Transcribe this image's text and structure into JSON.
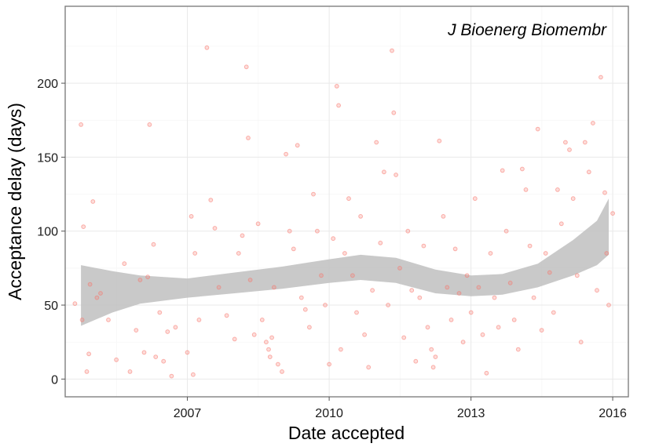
{
  "chart_data": {
    "type": "scatter",
    "annotation": "J Bioenerg Biomembr",
    "xlabel": "Date accepted",
    "ylabel": "Acceptance delay (days)",
    "xlim": [
      "2004-06-01",
      "2016-05-01"
    ],
    "ylim": [
      -12,
      252
    ],
    "x_ticks": [
      "2007-01-01",
      "2010-01-01",
      "2013-01-01",
      "2016-01-01"
    ],
    "x_tick_labels": [
      "2007",
      "2010",
      "2013",
      "2016"
    ],
    "y_ticks": [
      0,
      50,
      100,
      150,
      200
    ],
    "y_tick_labels": [
      "0",
      "50",
      "100",
      "150",
      "200"
    ],
    "grid": true,
    "point_color": "#F8766D",
    "band_color": "#c0c0c0",
    "smooth": [
      {
        "x": "2004-10-01",
        "y": 56,
        "lo": 36,
        "hi": 77
      },
      {
        "x": "2005-06-01",
        "y": 60,
        "lo": 45,
        "hi": 73
      },
      {
        "x": "2006-01-01",
        "y": 61,
        "lo": 51,
        "hi": 70
      },
      {
        "x": "2007-01-01",
        "y": 62,
        "lo": 55,
        "hi": 68
      },
      {
        "x": "2008-01-01",
        "y": 65,
        "lo": 58,
        "hi": 72
      },
      {
        "x": "2009-01-01",
        "y": 68,
        "lo": 61,
        "hi": 76
      },
      {
        "x": "2010-01-01",
        "y": 73,
        "lo": 65,
        "hi": 81
      },
      {
        "x": "2010-09-01",
        "y": 75,
        "lo": 67,
        "hi": 84
      },
      {
        "x": "2011-06-01",
        "y": 73,
        "lo": 65,
        "hi": 82
      },
      {
        "x": "2012-04-01",
        "y": 66,
        "lo": 58,
        "hi": 74
      },
      {
        "x": "2013-01-01",
        "y": 63,
        "lo": 56,
        "hi": 70
      },
      {
        "x": "2013-09-01",
        "y": 64,
        "lo": 57,
        "hi": 71
      },
      {
        "x": "2014-06-01",
        "y": 70,
        "lo": 62,
        "hi": 78
      },
      {
        "x": "2015-03-01",
        "y": 81,
        "lo": 70,
        "hi": 94
      },
      {
        "x": "2015-09-01",
        "y": 91,
        "lo": 77,
        "hi": 107
      },
      {
        "x": "2015-12-01",
        "y": 103,
        "lo": 84,
        "hi": 122
      }
    ],
    "points": [
      [
        "2004-08-15",
        51
      ],
      [
        "2004-10-01",
        172
      ],
      [
        "2004-10-20",
        103
      ],
      [
        "2004-10-10",
        40
      ],
      [
        "2004-11-15",
        5
      ],
      [
        "2004-12-10",
        64
      ],
      [
        "2005-01-01",
        120
      ],
      [
        "2005-02-01",
        55
      ],
      [
        "2005-03-01",
        58
      ],
      [
        "2004-12-01",
        17
      ],
      [
        "2005-05-01",
        40
      ],
      [
        "2005-07-01",
        13
      ],
      [
        "2005-09-01",
        78
      ],
      [
        "2005-10-15",
        5
      ],
      [
        "2005-12-01",
        33
      ],
      [
        "2006-01-01",
        67
      ],
      [
        "2006-02-01",
        18
      ],
      [
        "2006-03-01",
        69
      ],
      [
        "2006-03-15",
        172
      ],
      [
        "2006-04-15",
        91
      ],
      [
        "2006-05-01",
        15
      ],
      [
        "2006-06-01",
        45
      ],
      [
        "2006-07-01",
        12
      ],
      [
        "2006-08-01",
        32
      ],
      [
        "2006-09-01",
        2
      ],
      [
        "2006-10-01",
        35
      ],
      [
        "2007-01-01",
        18
      ],
      [
        "2007-02-01",
        110
      ],
      [
        "2007-02-15",
        3
      ],
      [
        "2007-03-01",
        85
      ],
      [
        "2007-04-01",
        40
      ],
      [
        "2007-06-01",
        224
      ],
      [
        "2007-07-01",
        121
      ],
      [
        "2007-08-01",
        102
      ],
      [
        "2007-09-01",
        62
      ],
      [
        "2007-11-01",
        43
      ],
      [
        "2008-01-01",
        27
      ],
      [
        "2008-02-01",
        85
      ],
      [
        "2008-03-01",
        97
      ],
      [
        "2008-04-01",
        211
      ],
      [
        "2008-04-15",
        163
      ],
      [
        "2008-05-01",
        67
      ],
      [
        "2008-06-01",
        30
      ],
      [
        "2008-07-01",
        105
      ],
      [
        "2008-08-01",
        40
      ],
      [
        "2008-09-01",
        25
      ],
      [
        "2008-09-20",
        20
      ],
      [
        "2008-10-01",
        15
      ],
      [
        "2008-10-15",
        28
      ],
      [
        "2008-11-01",
        62
      ],
      [
        "2008-12-01",
        10
      ],
      [
        "2009-01-01",
        5
      ],
      [
        "2009-02-01",
        152
      ],
      [
        "2009-03-01",
        100
      ],
      [
        "2009-04-01",
        88
      ],
      [
        "2009-05-01",
        158
      ],
      [
        "2009-06-01",
        55
      ],
      [
        "2009-07-01",
        47
      ],
      [
        "2009-08-01",
        35
      ],
      [
        "2009-09-01",
        125
      ],
      [
        "2009-10-01",
        100
      ],
      [
        "2009-11-01",
        70
      ],
      [
        "2009-12-01",
        50
      ],
      [
        "2010-01-01",
        10
      ],
      [
        "2010-02-01",
        95
      ],
      [
        "2010-03-01",
        198
      ],
      [
        "2010-03-15",
        185
      ],
      [
        "2010-04-01",
        20
      ],
      [
        "2010-05-01",
        85
      ],
      [
        "2010-06-01",
        122
      ],
      [
        "2010-07-01",
        70
      ],
      [
        "2010-08-01",
        45
      ],
      [
        "2010-09-01",
        110
      ],
      [
        "2010-10-01",
        30
      ],
      [
        "2010-11-01",
        8
      ],
      [
        "2010-12-01",
        60
      ],
      [
        "2011-01-01",
        160
      ],
      [
        "2011-02-01",
        92
      ],
      [
        "2011-03-01",
        140
      ],
      [
        "2011-04-01",
        50
      ],
      [
        "2011-05-01",
        222
      ],
      [
        "2011-05-15",
        180
      ],
      [
        "2011-06-01",
        138
      ],
      [
        "2011-07-01",
        75
      ],
      [
        "2011-08-01",
        28
      ],
      [
        "2011-09-01",
        100
      ],
      [
        "2011-10-01",
        60
      ],
      [
        "2011-11-01",
        12
      ],
      [
        "2011-12-01",
        55
      ],
      [
        "2012-01-01",
        90
      ],
      [
        "2012-02-01",
        35
      ],
      [
        "2012-03-01",
        20
      ],
      [
        "2012-03-15",
        8
      ],
      [
        "2012-04-01",
        15
      ],
      [
        "2012-05-01",
        161
      ],
      [
        "2012-06-01",
        110
      ],
      [
        "2012-07-01",
        62
      ],
      [
        "2012-08-01",
        40
      ],
      [
        "2012-09-01",
        88
      ],
      [
        "2012-10-01",
        58
      ],
      [
        "2012-11-01",
        25
      ],
      [
        "2012-12-01",
        70
      ],
      [
        "2013-01-01",
        45
      ],
      [
        "2013-02-01",
        122
      ],
      [
        "2013-03-01",
        62
      ],
      [
        "2013-04-01",
        30
      ],
      [
        "2013-05-01",
        4
      ],
      [
        "2013-06-01",
        85
      ],
      [
        "2013-07-01",
        55
      ],
      [
        "2013-08-01",
        35
      ],
      [
        "2013-09-01",
        141
      ],
      [
        "2013-10-01",
        100
      ],
      [
        "2013-11-01",
        65
      ],
      [
        "2013-12-01",
        40
      ],
      [
        "2014-01-01",
        20
      ],
      [
        "2014-02-01",
        142
      ],
      [
        "2014-03-01",
        128
      ],
      [
        "2014-04-01",
        90
      ],
      [
        "2014-05-01",
        55
      ],
      [
        "2014-06-01",
        169
      ],
      [
        "2014-07-01",
        33
      ],
      [
        "2014-08-01",
        85
      ],
      [
        "2014-09-01",
        72
      ],
      [
        "2014-10-01",
        45
      ],
      [
        "2014-11-01",
        128
      ],
      [
        "2014-12-01",
        105
      ],
      [
        "2015-01-01",
        160
      ],
      [
        "2015-02-01",
        155
      ],
      [
        "2015-03-01",
        122
      ],
      [
        "2015-04-01",
        70
      ],
      [
        "2015-05-01",
        25
      ],
      [
        "2015-06-01",
        160
      ],
      [
        "2015-07-01",
        140
      ],
      [
        "2015-08-01",
        173
      ],
      [
        "2015-09-01",
        60
      ],
      [
        "2015-10-01",
        204
      ],
      [
        "2015-11-01",
        126
      ],
      [
        "2015-12-01",
        50
      ],
      [
        "2016-01-01",
        112
      ],
      [
        "2015-11-15",
        85
      ]
    ]
  }
}
